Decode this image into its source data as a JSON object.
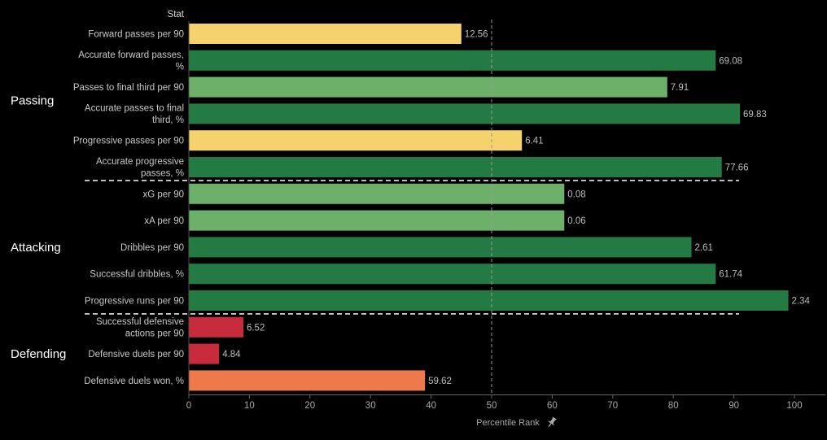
{
  "chart_data": {
    "type": "bar",
    "orientation": "horizontal",
    "column_header": "Stat",
    "xlabel": "Percentile Rank",
    "xlim": [
      0,
      100
    ],
    "xticks": [
      0,
      10,
      20,
      30,
      40,
      50,
      60,
      70,
      80,
      90,
      100
    ],
    "reference_line": 50,
    "colors": {
      "dark_green": "#237a43",
      "light_green": "#6db069",
      "yellow": "#f5d26b",
      "red": "#c82b3c",
      "orange": "#ee7a4b"
    },
    "groups": [
      {
        "name": "Passing",
        "stats": [
          {
            "label": [
              "Forward passes per 90"
            ],
            "percentile": 45,
            "value": "12.56",
            "color": "yellow"
          },
          {
            "label": [
              "Accurate forward passes,",
              "%"
            ],
            "percentile": 87,
            "value": "69.08",
            "color": "dark_green"
          },
          {
            "label": [
              "Passes to final third per 90"
            ],
            "percentile": 79,
            "value": "7.91",
            "color": "light_green"
          },
          {
            "label": [
              "Accurate passes to final",
              "third, %"
            ],
            "percentile": 91,
            "value": "69.83",
            "color": "dark_green"
          },
          {
            "label": [
              "Progressive passes per 90"
            ],
            "percentile": 55,
            "value": "6.41",
            "color": "yellow"
          },
          {
            "label": [
              "Accurate progressive",
              "passes, %"
            ],
            "percentile": 88,
            "value": "77.66",
            "color": "dark_green"
          }
        ]
      },
      {
        "name": "Attacking",
        "stats": [
          {
            "label": [
              "xG per 90"
            ],
            "percentile": 62,
            "value": "0.08",
            "color": "light_green"
          },
          {
            "label": [
              "xA per 90"
            ],
            "percentile": 62,
            "value": "0.06",
            "color": "light_green"
          },
          {
            "label": [
              "Dribbles per 90"
            ],
            "percentile": 83,
            "value": "2.61",
            "color": "dark_green"
          },
          {
            "label": [
              "Successful dribbles, %"
            ],
            "percentile": 87,
            "value": "61.74",
            "color": "dark_green"
          },
          {
            "label": [
              "Progressive runs per 90"
            ],
            "percentile": 99,
            "value": "2.34",
            "color": "dark_green"
          }
        ]
      },
      {
        "name": "Defending",
        "stats": [
          {
            "label": [
              "Successful defensive",
              "actions per 90"
            ],
            "percentile": 9,
            "value": "6.52",
            "color": "red"
          },
          {
            "label": [
              "Defensive duels per 90"
            ],
            "percentile": 5,
            "value": "4.84",
            "color": "red"
          },
          {
            "label": [
              "Defensive duels won, %"
            ],
            "percentile": 39,
            "value": "59.62",
            "color": "orange"
          }
        ]
      }
    ]
  }
}
